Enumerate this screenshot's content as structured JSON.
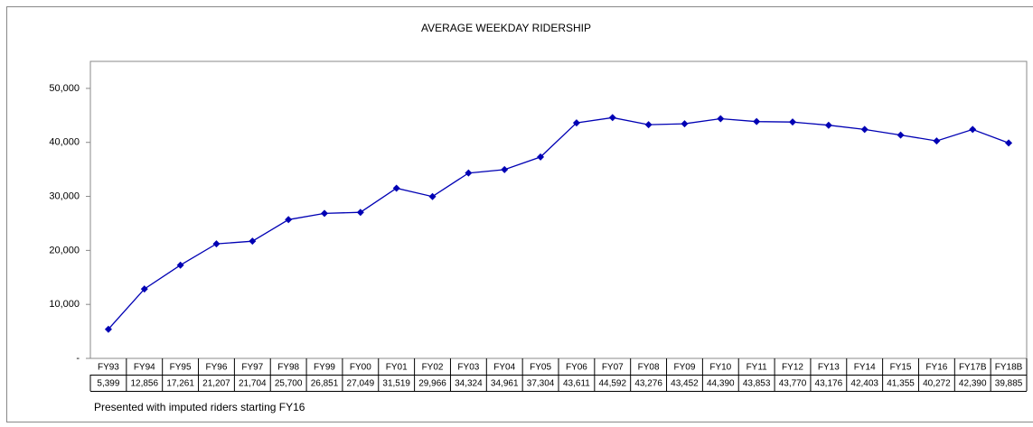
{
  "chart_data": {
    "type": "line",
    "title": "AVERAGE WEEKDAY RIDERSHIP",
    "categories": [
      "FY93",
      "FY94",
      "FY95",
      "FY96",
      "FY97",
      "FY98",
      "FY99",
      "FY00",
      "FY01",
      "FY02",
      "FY03",
      "FY04",
      "FY05",
      "FY06",
      "FY07",
      "FY08",
      "FY09",
      "FY10",
      "FY11",
      "FY12",
      "FY13",
      "FY14",
      "FY15",
      "FY16",
      "FY17B",
      "FY18B"
    ],
    "values": [
      5399,
      12856,
      17261,
      21207,
      21704,
      25700,
      26851,
      27049,
      31519,
      29966,
      34324,
      34961,
      37304,
      43611,
      44592,
      43276,
      43452,
      44390,
      43853,
      43770,
      43176,
      42403,
      41355,
      40272,
      42390,
      39885
    ],
    "value_labels": [
      "5,399",
      "12,856",
      "17,261",
      "21,207",
      "21,704",
      "25,700",
      "26,851",
      "27,049",
      "31,519",
      "29,966",
      "34,324",
      "34,961",
      "37,304",
      "43,611",
      "44,592",
      "43,276",
      "43,452",
      "44,390",
      "43,853",
      "43,770",
      "43,176",
      "42,403",
      "41,355",
      "40,272",
      "42,390",
      "39,885"
    ],
    "color": "#0000b4",
    "ylim": [
      0,
      55000
    ],
    "yticks": [
      {
        "value": 0,
        "label": "-"
      },
      {
        "value": 10000,
        "label": "10,000"
      },
      {
        "value": 20000,
        "label": "20,000"
      },
      {
        "value": 30000,
        "label": "30,000"
      },
      {
        "value": 40000,
        "label": "40,000"
      },
      {
        "value": 50000,
        "label": "50,000"
      }
    ],
    "grid": false,
    "annotation": "Presented with imputed riders starting FY16"
  }
}
